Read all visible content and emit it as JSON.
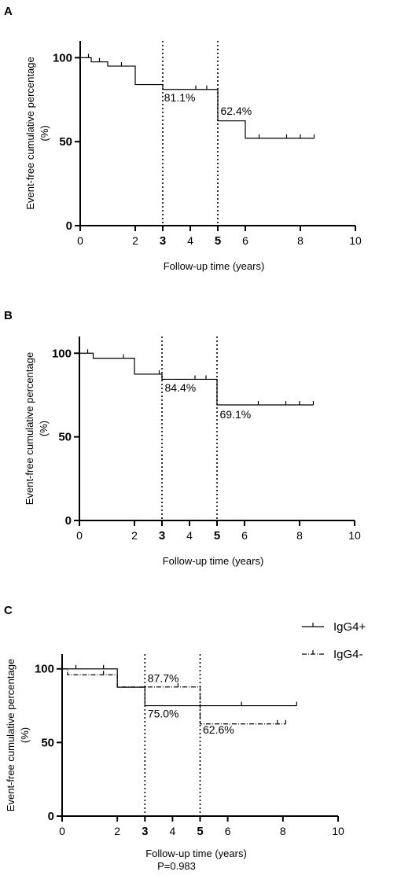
{
  "chart_data": [
    {
      "type": "line",
      "panel": "A",
      "xlabel": "Follow-up time (years)",
      "ylabel": "Event-free cumulative percentage\n(%)",
      "xlim": [
        0,
        10
      ],
      "ylim": [
        0,
        110
      ],
      "xticks": [
        0,
        2,
        3,
        4,
        5,
        6,
        8,
        10
      ],
      "xticks_bold": [
        3,
        5
      ],
      "yticks": [
        0,
        50,
        100
      ],
      "vlines": [
        3,
        5
      ],
      "series": [
        {
          "style": "solid",
          "x": [
            0,
            0.4,
            0.4,
            1,
            1,
            2,
            2,
            3,
            3,
            5,
            5,
            6,
            6,
            8.5
          ],
          "y": [
            100,
            100,
            97.5,
            97.5,
            95,
            95,
            84,
            84,
            81.1,
            81.1,
            62.4,
            62.4,
            52,
            52
          ],
          "censor": [
            [
              0.3,
              100
            ],
            [
              0.7,
              97.5
            ],
            [
              1.5,
              95
            ],
            [
              4.2,
              81.1
            ],
            [
              4.6,
              81.1
            ],
            [
              6.5,
              52
            ],
            [
              7.5,
              52
            ],
            [
              8,
              52
            ],
            [
              8.5,
              52
            ]
          ]
        }
      ],
      "annotations": [
        {
          "text": "81.1%",
          "x": 3.05,
          "y": 74
        },
        {
          "text": "62.4%",
          "x": 5.1,
          "y": 66
        }
      ]
    },
    {
      "type": "line",
      "panel": "B",
      "xlabel": "Follow-up time (years)",
      "ylabel": "Event-free cumulative percentage\n(%)",
      "xlim": [
        0,
        10
      ],
      "ylim": [
        0,
        110
      ],
      "xticks": [
        0,
        2,
        3,
        4,
        5,
        6,
        8,
        10
      ],
      "xticks_bold": [
        3,
        5
      ],
      "yticks": [
        0,
        50,
        100
      ],
      "vlines": [
        3,
        5
      ],
      "series": [
        {
          "style": "solid",
          "x": [
            0,
            0.5,
            0.5,
            2,
            2,
            3,
            3,
            5,
            5,
            8.5
          ],
          "y": [
            100,
            100,
            97,
            97,
            87.5,
            87.5,
            84.4,
            84.4,
            69.1,
            69.1
          ],
          "censor": [
            [
              0.3,
              100
            ],
            [
              1.6,
              97
            ],
            [
              2.9,
              87.5
            ],
            [
              4.2,
              84.4
            ],
            [
              4.6,
              84.4
            ],
            [
              6.5,
              69.1
            ],
            [
              7.5,
              69.1
            ],
            [
              8,
              69.1
            ],
            [
              8.5,
              69.1
            ]
          ]
        }
      ],
      "annotations": [
        {
          "text": "84.4%",
          "x": 3.1,
          "y": 77
        },
        {
          "text": "69.1%",
          "x": 5.1,
          "y": 61
        }
      ]
    },
    {
      "type": "line",
      "panel": "C",
      "xlabel": "Follow-up time (years)",
      "ylabel": "Event-free cumulative percentage\n(%)",
      "xlim": [
        0,
        10
      ],
      "ylim": [
        0,
        110
      ],
      "xticks": [
        0,
        2,
        3,
        4,
        5,
        6,
        8,
        10
      ],
      "xticks_bold": [
        3,
        5
      ],
      "yticks": [
        0,
        50,
        100
      ],
      "vlines": [
        3,
        5
      ],
      "footnote": "P=0.983",
      "series": [
        {
          "name": "IgG4+",
          "style": "solid",
          "x": [
            0,
            2,
            2,
            3,
            3,
            8.5
          ],
          "y": [
            100,
            100,
            87.5,
            87.5,
            75,
            75
          ],
          "censor": [
            [
              0.5,
              100
            ],
            [
              1.5,
              100
            ],
            [
              6.5,
              75
            ],
            [
              8.5,
              75
            ]
          ]
        },
        {
          "name": "IgG4-",
          "style": "dashdot",
          "x": [
            0,
            0.2,
            0.2,
            2,
            2,
            5,
            5,
            8.1
          ],
          "y": [
            100,
            100,
            96,
            96,
            87.7,
            87.7,
            62.6,
            62.6
          ],
          "censor": [
            [
              1.5,
              96
            ],
            [
              4.2,
              87.7
            ],
            [
              7.8,
              62.6
            ],
            [
              8.1,
              62.6
            ]
          ]
        }
      ],
      "annotations": [
        {
          "text": "87.7%",
          "x": 3.1,
          "y": 91
        },
        {
          "text": "75.0%",
          "x": 3.1,
          "y": 67
        },
        {
          "text": "62.6%",
          "x": 5.1,
          "y": 56
        }
      ]
    }
  ]
}
